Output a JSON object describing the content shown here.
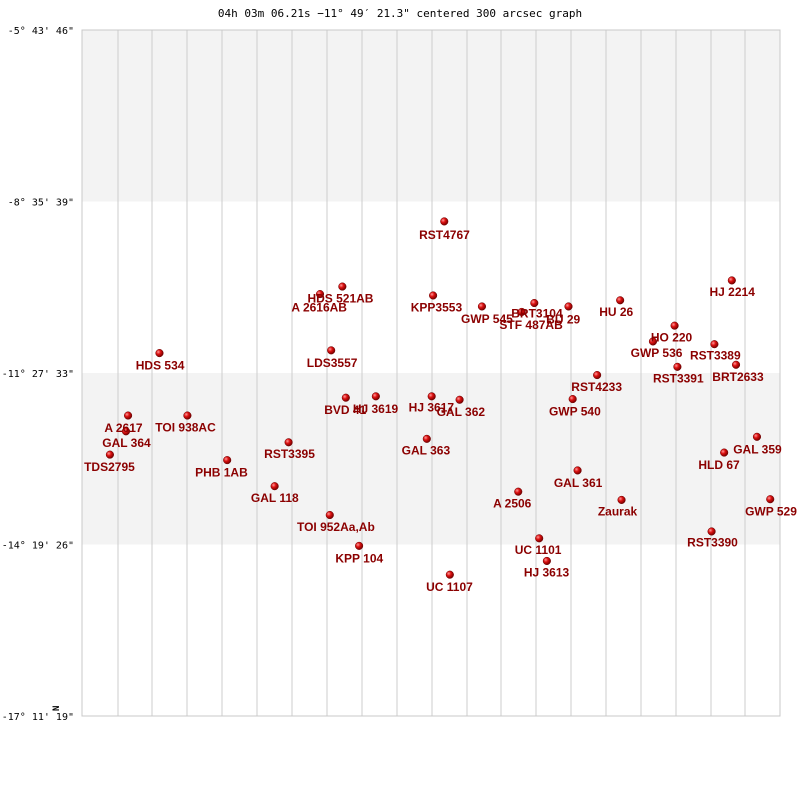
{
  "chart_data": {
    "type": "scatter",
    "title": "04h 03m 06.21s −11° 49′ 21.3\" centered 300 arcsec graph",
    "axis_label": "N",
    "x_range": [
      0,
      1
    ],
    "y_ticks": [
      {
        "label": "-5° 43' 46\"",
        "value": 0.0
      },
      {
        "label": "-8° 35' 39\"",
        "value": 0.25
      },
      {
        "label": "-11° 27' 33\"",
        "value": 0.5
      },
      {
        "label": "-14° 19' 26\"",
        "value": 0.75
      },
      {
        "label": "-17° 11' 19\"",
        "value": 1.0
      }
    ],
    "stars": [
      {
        "name": "RST4767",
        "x": 0.519,
        "y": 0.279,
        "lx": 0.483,
        "ly": 0.305
      },
      {
        "name": "HJ 2214",
        "x": 0.931,
        "y": 0.365,
        "lx": 0.899,
        "ly": 0.388
      },
      {
        "name": "HDS 521AB",
        "x": 0.373,
        "y": 0.374,
        "lx": 0.323,
        "ly": 0.397
      },
      {
        "name": "A  2616AB",
        "x": 0.341,
        "y": 0.385,
        "lx": 0.3,
        "ly": 0.41
      },
      {
        "name": "KPP3553",
        "x": 0.503,
        "y": 0.387,
        "lx": 0.471,
        "ly": 0.41
      },
      {
        "name": "GWP 545",
        "x": 0.573,
        "y": 0.403,
        "lx": 0.543,
        "ly": 0.427
      },
      {
        "name": "BRT3104",
        "x": 0.648,
        "y": 0.398,
        "lx": 0.615,
        "ly": 0.419
      },
      {
        "name": "STF 487AB",
        "x": 0.63,
        "y": 0.411,
        "lx": 0.598,
        "ly": 0.436
      },
      {
        "name": "BU   29",
        "x": 0.697,
        "y": 0.403,
        "lx": 0.665,
        "ly": 0.428
      },
      {
        "name": "HU   26",
        "x": 0.771,
        "y": 0.394,
        "lx": 0.741,
        "ly": 0.417
      },
      {
        "name": "HO  220",
        "x": 0.849,
        "y": 0.431,
        "lx": 0.815,
        "ly": 0.454
      },
      {
        "name": "GWP 536",
        "x": 0.818,
        "y": 0.454,
        "lx": 0.786,
        "ly": 0.477
      },
      {
        "name": "RST3389",
        "x": 0.906,
        "y": 0.458,
        "lx": 0.871,
        "ly": 0.48
      },
      {
        "name": "LDS3557",
        "x": 0.357,
        "y": 0.467,
        "lx": 0.322,
        "ly": 0.491
      },
      {
        "name": "HDS 534",
        "x": 0.111,
        "y": 0.471,
        "lx": 0.077,
        "ly": 0.495
      },
      {
        "name": "RST3391",
        "x": 0.853,
        "y": 0.491,
        "lx": 0.818,
        "ly": 0.514
      },
      {
        "name": "BRT2633",
        "x": 0.937,
        "y": 0.488,
        "lx": 0.903,
        "ly": 0.512
      },
      {
        "name": "RST4233",
        "x": 0.738,
        "y": 0.503,
        "lx": 0.701,
        "ly": 0.526
      },
      {
        "name": "BVD  41",
        "x": 0.378,
        "y": 0.536,
        "lx": 0.347,
        "ly": 0.56
      },
      {
        "name": "HJ 3619",
        "x": 0.421,
        "y": 0.534,
        "lx": 0.388,
        "ly": 0.558
      },
      {
        "name": "HJ 3617",
        "x": 0.501,
        "y": 0.534,
        "lx": 0.468,
        "ly": 0.556
      },
      {
        "name": "GAL 362",
        "x": 0.541,
        "y": 0.539,
        "lx": 0.508,
        "ly": 0.563
      },
      {
        "name": "GWP 540",
        "x": 0.703,
        "y": 0.538,
        "lx": 0.669,
        "ly": 0.562
      },
      {
        "name": "A  2617",
        "x": 0.066,
        "y": 0.562,
        "lx": 0.032,
        "ly": 0.586
      },
      {
        "name": "TOI 938AC",
        "x": 0.151,
        "y": 0.562,
        "lx": 0.105,
        "ly": 0.585
      },
      {
        "name": "GAL 364",
        "x": 0.063,
        "y": 0.585,
        "lx": 0.029,
        "ly": 0.608
      },
      {
        "name": "RST3395",
        "x": 0.296,
        "y": 0.601,
        "lx": 0.261,
        "ly": 0.624
      },
      {
        "name": "GAL 363",
        "x": 0.494,
        "y": 0.596,
        "lx": 0.458,
        "ly": 0.619
      },
      {
        "name": "GAL 359",
        "x": 0.967,
        "y": 0.593,
        "lx": 0.933,
        "ly": 0.617
      },
      {
        "name": "HLD  67",
        "x": 0.92,
        "y": 0.616,
        "lx": 0.883,
        "ly": 0.64
      },
      {
        "name": "TDS2795",
        "x": 0.04,
        "y": 0.619,
        "lx": 0.003,
        "ly": 0.643
      },
      {
        "name": "PHB   1AB",
        "x": 0.208,
        "y": 0.627,
        "lx": 0.162,
        "ly": 0.651
      },
      {
        "name": "GAL 361",
        "x": 0.71,
        "y": 0.642,
        "lx": 0.676,
        "ly": 0.666
      },
      {
        "name": "GAL 118",
        "x": 0.276,
        "y": 0.665,
        "lx": 0.242,
        "ly": 0.688
      },
      {
        "name": "A  2506",
        "x": 0.625,
        "y": 0.673,
        "lx": 0.589,
        "ly": 0.696
      },
      {
        "name": "Zaurak",
        "x": 0.773,
        "y": 0.685,
        "lx": 0.739,
        "ly": 0.708
      },
      {
        "name": "GWP 529",
        "x": 0.986,
        "y": 0.684,
        "lx": 0.95,
        "ly": 0.708
      },
      {
        "name": "TOI 952Aa,Ab",
        "x": 0.355,
        "y": 0.707,
        "lx": 0.308,
        "ly": 0.73
      },
      {
        "name": "RST3390",
        "x": 0.902,
        "y": 0.731,
        "lx": 0.867,
        "ly": 0.753
      },
      {
        "name": "UC 1101",
        "x": 0.655,
        "y": 0.741,
        "lx": 0.62,
        "ly": 0.764
      },
      {
        "name": "KPP 104",
        "x": 0.397,
        "y": 0.752,
        "lx": 0.363,
        "ly": 0.776
      },
      {
        "name": "HJ 3613",
        "x": 0.666,
        "y": 0.774,
        "lx": 0.633,
        "ly": 0.797
      },
      {
        "name": "UC 1107",
        "x": 0.527,
        "y": 0.794,
        "lx": 0.493,
        "ly": 0.818
      }
    ]
  },
  "colors": {
    "star_fill": "#cc0000",
    "star_highlight": "#ff9a9a",
    "label": "#8b0000",
    "band": "#f3f3f3",
    "grid": "#cccccc",
    "border": "#c8c8c8"
  }
}
